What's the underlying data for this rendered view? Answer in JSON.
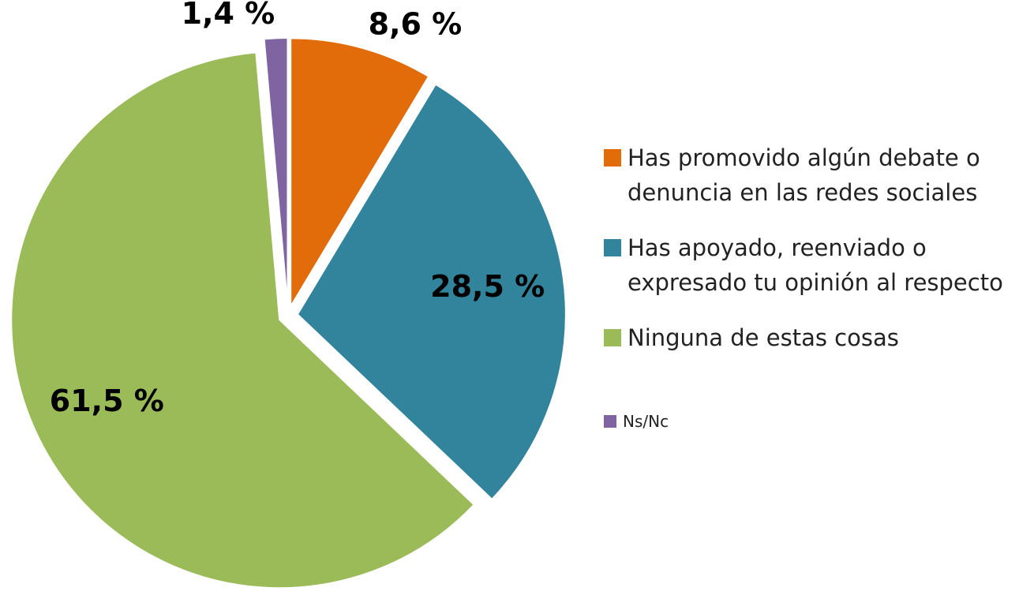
{
  "chart_data": {
    "type": "pie",
    "categories": [
      "Has promovido algún debate o denuncia en las redes sociales",
      "Has apoyado, reenviado o expresado tu opinión al respecto",
      "Ninguna de estas cosas",
      "Ns/Nc"
    ],
    "values": [
      8.6,
      28.5,
      61.5,
      1.4
    ],
    "value_labels": [
      "8,6 %",
      "28,5 %",
      "61,5 %",
      "1,4 %"
    ],
    "colors": [
      "#E36C0A",
      "#31849B",
      "#9BBB59",
      "#8064A2"
    ]
  }
}
